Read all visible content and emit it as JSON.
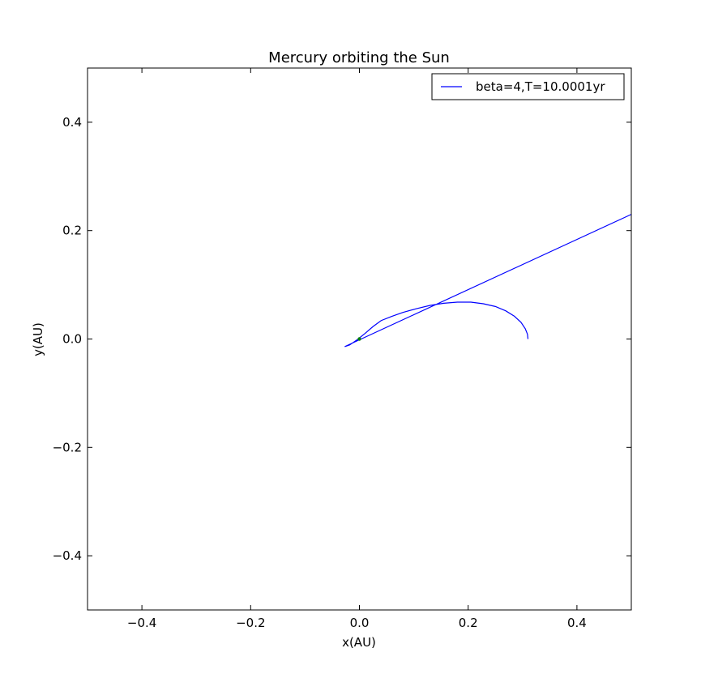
{
  "chart_data": {
    "type": "line",
    "title": "Mercury orbiting the Sun",
    "xlabel": "x(AU)",
    "ylabel": "y(AU)",
    "xlim": [
      -0.5,
      0.5
    ],
    "ylim": [
      -0.5,
      0.5
    ],
    "xticks": [
      -0.4,
      -0.2,
      0.0,
      0.2,
      0.4
    ],
    "yticks": [
      -0.4,
      -0.2,
      0.0,
      0.2,
      0.4
    ],
    "xtick_labels": [
      "−0.4",
      "−0.2",
      "0.0",
      "0.2",
      "0.4"
    ],
    "ytick_labels": [
      "−0.4",
      "−0.2",
      "0.0",
      "0.2",
      "0.4"
    ],
    "grid": false,
    "legend_position": "top-right",
    "series": [
      {
        "name": "beta=4,T=10.0001yr",
        "color": "#0000ff",
        "points": [
          [
            0.31,
            0.0
          ],
          [
            0.309,
            0.009
          ],
          [
            0.305,
            0.019
          ],
          [
            0.297,
            0.031
          ],
          [
            0.285,
            0.042
          ],
          [
            0.269,
            0.052
          ],
          [
            0.25,
            0.06
          ],
          [
            0.228,
            0.065
          ],
          [
            0.205,
            0.068
          ],
          [
            0.18,
            0.068
          ],
          [
            0.155,
            0.066
          ],
          [
            0.13,
            0.062
          ],
          [
            0.105,
            0.056
          ],
          [
            0.08,
            0.049
          ],
          [
            0.06,
            0.042
          ],
          [
            0.04,
            0.034
          ],
          [
            0.025,
            0.023
          ],
          [
            0.01,
            0.01
          ],
          [
            -0.005,
            -0.002
          ],
          [
            -0.018,
            -0.011
          ],
          [
            -0.027,
            -0.014
          ],
          [
            0.5,
            0.23
          ]
        ]
      },
      {
        "name": "",
        "color": "#008000",
        "marker": "point",
        "points": [
          [
            0.0,
            0.0
          ]
        ]
      }
    ]
  }
}
